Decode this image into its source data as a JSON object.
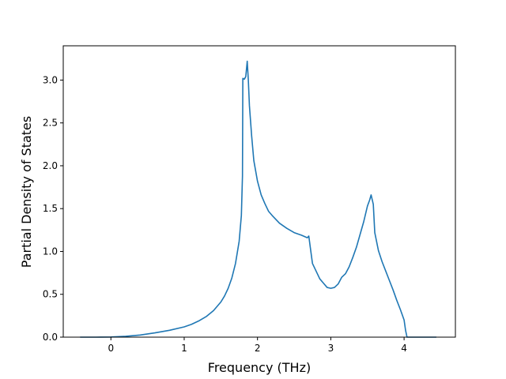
{
  "chart_data": {
    "type": "line",
    "title": "",
    "xlabel": "Frequency (THz)",
    "ylabel": "Partial Density of States",
    "xlim": [
      -0.65,
      4.7
    ],
    "ylim": [
      0.0,
      3.4
    ],
    "xticks": [
      0,
      1,
      2,
      3,
      4
    ],
    "xtick_labels": [
      "0",
      "1",
      "2",
      "3",
      "4"
    ],
    "yticks": [
      0.0,
      0.5,
      1.0,
      1.5,
      2.0,
      2.5,
      3.0
    ],
    "ytick_labels": [
      "0.0",
      "0.5",
      "1.0",
      "1.5",
      "2.0",
      "2.5",
      "3.0"
    ],
    "grid": false,
    "series": [
      {
        "color": "#1f77b4",
        "x": [
          -0.42,
          -0.2,
          0.0,
          0.2,
          0.4,
          0.6,
          0.8,
          1.0,
          1.1,
          1.2,
          1.3,
          1.4,
          1.5,
          1.55,
          1.6,
          1.65,
          1.7,
          1.75,
          1.78,
          1.795,
          1.8,
          1.82,
          1.84,
          1.86,
          1.875,
          1.89,
          1.92,
          1.95,
          2.0,
          2.05,
          2.1,
          2.15,
          2.2,
          2.3,
          2.4,
          2.5,
          2.6,
          2.68,
          2.7,
          2.72,
          2.75,
          2.8,
          2.85,
          2.9,
          2.95,
          3.0,
          3.05,
          3.1,
          3.15,
          3.2,
          3.25,
          3.3,
          3.35,
          3.4,
          3.45,
          3.5,
          3.53,
          3.55,
          3.58,
          3.6,
          3.65,
          3.7,
          3.75,
          3.8,
          3.85,
          3.9,
          3.95,
          4.0,
          4.02,
          4.04,
          4.06,
          4.1,
          4.2,
          4.3,
          4.44
        ],
        "y": [
          0.0,
          0.0,
          0.002,
          0.01,
          0.025,
          0.05,
          0.08,
          0.12,
          0.15,
          0.19,
          0.24,
          0.31,
          0.41,
          0.48,
          0.57,
          0.69,
          0.86,
          1.12,
          1.42,
          1.88,
          3.02,
          3.01,
          3.04,
          3.22,
          3.0,
          2.7,
          2.35,
          2.06,
          1.82,
          1.66,
          1.56,
          1.47,
          1.42,
          1.33,
          1.27,
          1.22,
          1.19,
          1.16,
          1.18,
          1.05,
          0.86,
          0.77,
          0.68,
          0.63,
          0.58,
          0.57,
          0.58,
          0.62,
          0.7,
          0.74,
          0.82,
          0.93,
          1.05,
          1.2,
          1.35,
          1.53,
          1.6,
          1.66,
          1.55,
          1.22,
          1.01,
          0.88,
          0.77,
          0.66,
          0.55,
          0.43,
          0.32,
          0.2,
          0.08,
          0.0,
          0.0,
          0.0,
          0.0,
          0.0,
          0.0
        ]
      }
    ]
  }
}
